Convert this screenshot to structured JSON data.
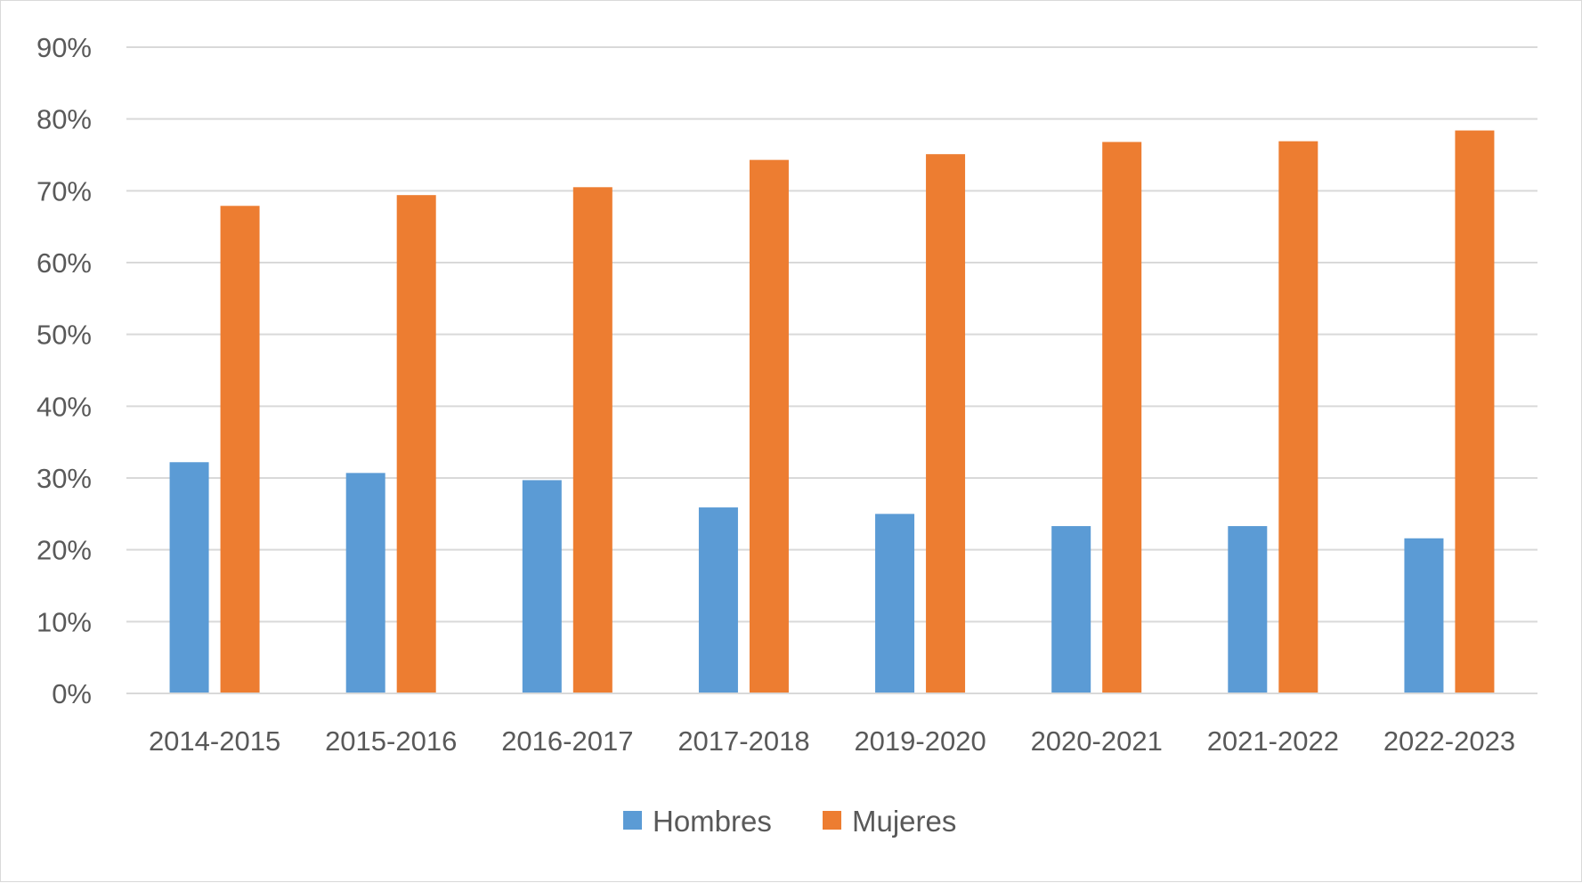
{
  "chart_data": {
    "type": "bar",
    "categories": [
      "2014-2015",
      "2015-2016",
      "2016-2017",
      "2017-2018",
      "2019-2020",
      "2020-2021",
      "2021-2022",
      "2022-2023"
    ],
    "series": [
      {
        "name": "Hombres",
        "color": "#5b9bd5",
        "values": [
          32.2,
          30.7,
          29.7,
          25.9,
          25.0,
          23.3,
          23.3,
          21.6
        ]
      },
      {
        "name": "Mujeres",
        "color": "#ed7d31",
        "values": [
          67.9,
          69.4,
          70.5,
          74.3,
          75.1,
          76.8,
          76.9,
          78.4
        ]
      }
    ],
    "y_ticks": [
      "0%",
      "10%",
      "20%",
      "30%",
      "40%",
      "50%",
      "60%",
      "70%",
      "80%",
      "90%"
    ],
    "ylim": [
      0,
      90
    ],
    "y_unit": "%",
    "grid": true,
    "legend_position": "bottom",
    "gridline_color": "#d9d9d9",
    "text_color": "#595959"
  }
}
